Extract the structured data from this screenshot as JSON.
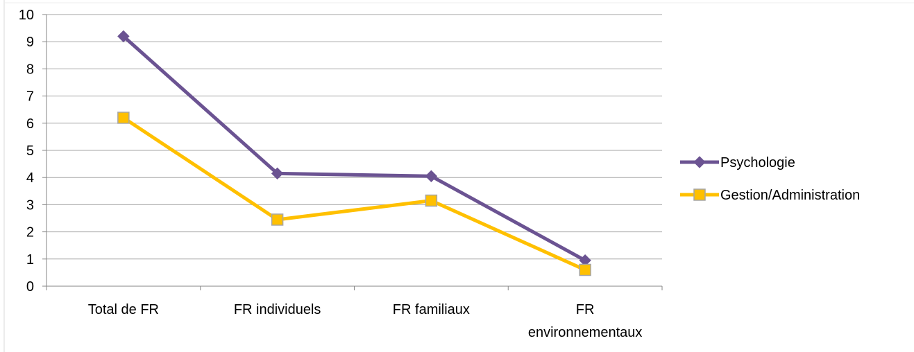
{
  "chart_data": {
    "type": "line",
    "categories": [
      [
        "Total de FR"
      ],
      [
        "FR individuels"
      ],
      [
        "FR familiaux"
      ],
      [
        "FR",
        "environnementaux"
      ]
    ],
    "series": [
      {
        "name": "Psychologie",
        "values": [
          9.2,
          4.15,
          4.05,
          0.95
        ],
        "color": "#6B5392",
        "marker": "diamond"
      },
      {
        "name": "Gestion/Administration",
        "values": [
          6.2,
          2.45,
          3.15,
          0.6
        ],
        "color": "#FFC000",
        "marker": "square"
      }
    ],
    "ylim": [
      0,
      10
    ],
    "yticks": [
      "0",
      "1",
      "2",
      "3",
      "4",
      "5",
      "6",
      "7",
      "8",
      "9",
      "10"
    ],
    "grid": true,
    "legend_position": "right",
    "title": "",
    "xlabel": "",
    "ylabel": ""
  }
}
